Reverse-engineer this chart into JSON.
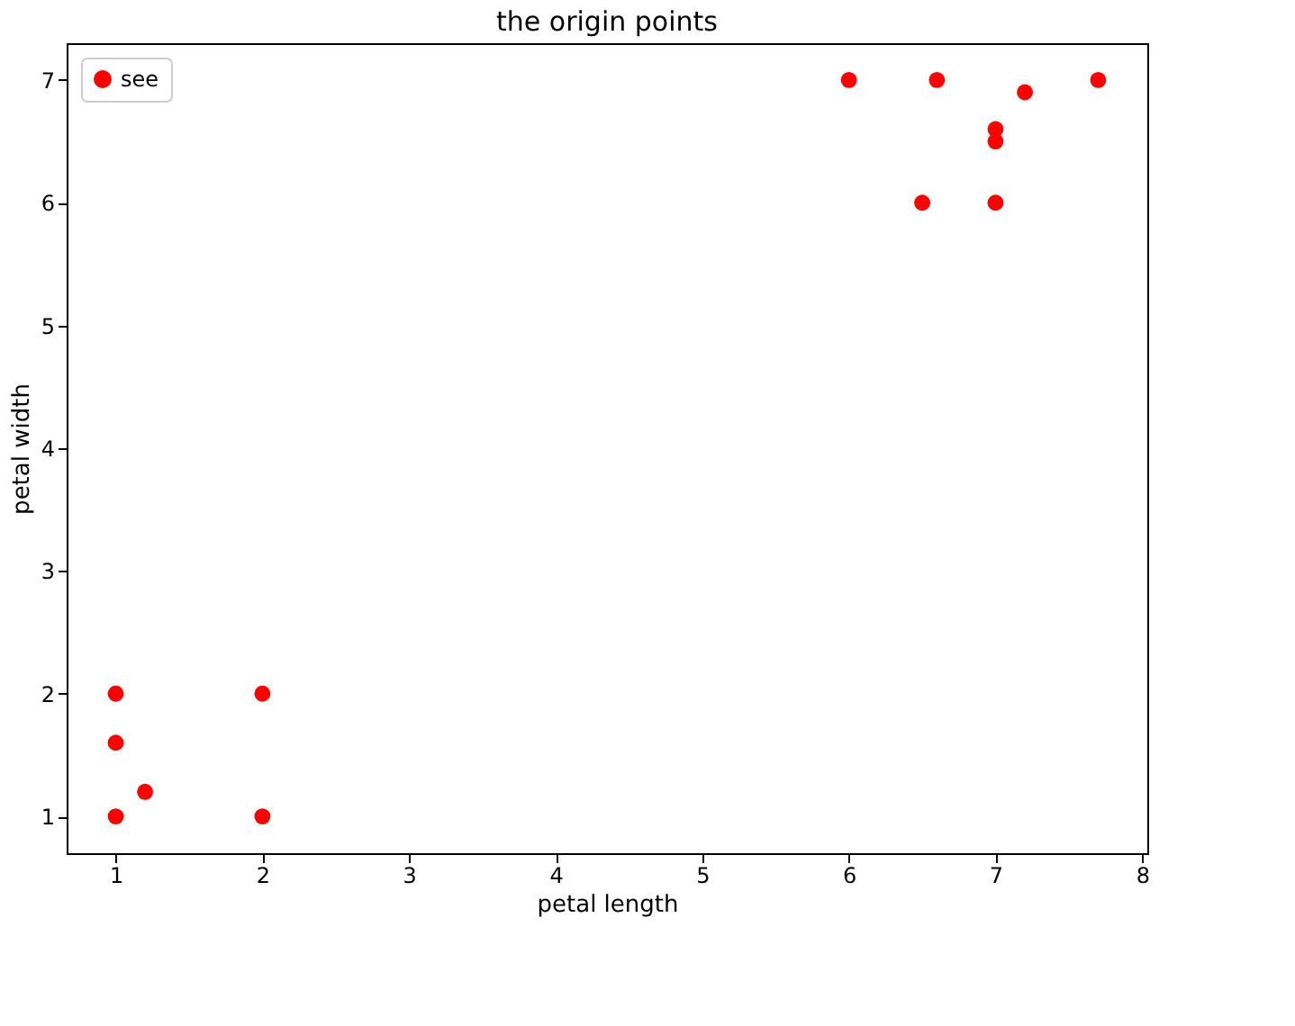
{
  "chart_data": {
    "type": "scatter",
    "title": "the origin points",
    "xlabel": "petal length",
    "ylabel": "petal width",
    "series": [
      {
        "name": "see",
        "color": "#ff0000",
        "x": [
          1,
          1,
          1,
          1.2,
          2,
          2,
          6,
          6.6,
          7.7,
          7.2,
          7,
          7,
          6.5,
          7
        ],
        "values": [
          1,
          1.6,
          2,
          1.2,
          2,
          1,
          7,
          7,
          7,
          6.9,
          6.6,
          6.5,
          6,
          6
        ]
      }
    ],
    "xlim": [
      0.665,
      8.035
    ],
    "ylim": [
      0.7,
      7.3
    ],
    "xticks": [
      1,
      2,
      3,
      4,
      5,
      6,
      7,
      8
    ],
    "yticks": [
      1,
      2,
      3,
      4,
      5,
      6,
      7
    ],
    "grid": false,
    "legend": "top left",
    "marker": "circle"
  }
}
